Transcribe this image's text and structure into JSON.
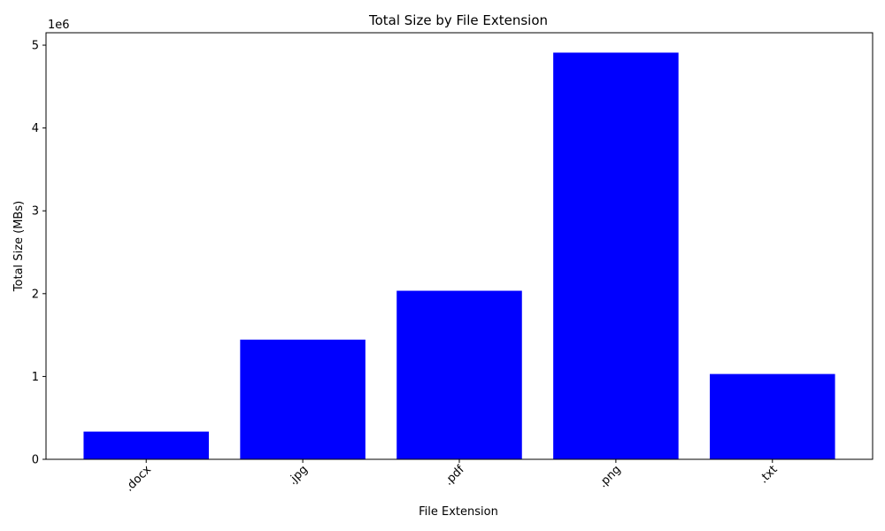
{
  "chart_data": {
    "type": "bar",
    "title": "Total Size by File Extension",
    "xlabel": "File Extension",
    "ylabel": "Total Size (MBs)",
    "categories": [
      ".docx",
      ".jpg",
      ".pdf",
      ".png",
      ".txt"
    ],
    "values": [
      335000,
      1445000,
      2035000,
      4910000,
      1030000
    ],
    "ylim": [
      0,
      5150000
    ],
    "yticks": [
      0,
      1000000,
      2000000,
      3000000,
      4000000,
      5000000
    ],
    "ytick_labels": [
      "0",
      "1",
      "2",
      "3",
      "4",
      "5"
    ],
    "y_offset_label": "1e6",
    "bar_color": "#0000ff",
    "grid": false,
    "legend": "none",
    "xtick_rotation_deg": 45
  }
}
